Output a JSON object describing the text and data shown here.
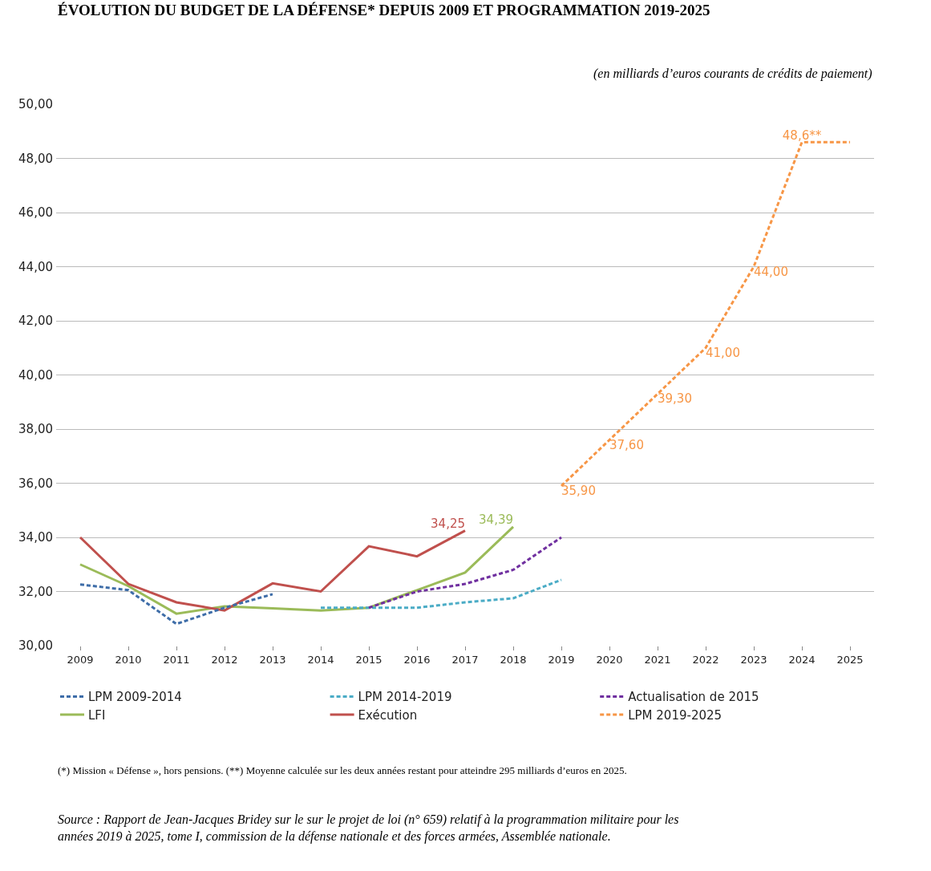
{
  "chart_data": {
    "type": "line",
    "title": "ÉVOLUTION DU BUDGET DE LA DÉFENSE* DEPUIS 2009 ET PROGRAMMATION 2019-2025",
    "subtitle": "(en milliards d’euros courants de crédits de paiement)",
    "categories": [
      "2009",
      "2010",
      "2011",
      "2012",
      "2013",
      "2014",
      "2015",
      "2016",
      "2017",
      "2018",
      "2019",
      "2020",
      "2021",
      "2022",
      "2023",
      "2024",
      "2025"
    ],
    "series": [
      {
        "name": "LPM 2009-2014",
        "color": "#3e6da8",
        "line_style": "dashed",
        "values": [
          32.26,
          32.05,
          30.8,
          31.4,
          31.9,
          null,
          null,
          null,
          null,
          null,
          null,
          null,
          null,
          null,
          null,
          null,
          null
        ]
      },
      {
        "name": "LPM 2014-2019",
        "color": "#4bacc6",
        "line_style": "dashed",
        "values": [
          null,
          null,
          null,
          null,
          null,
          31.4,
          31.4,
          31.4,
          31.6,
          31.75,
          32.43,
          null,
          null,
          null,
          null,
          null,
          null
        ]
      },
      {
        "name": "Actualisation de 2015",
        "color": "#7030a0",
        "line_style": "dashed",
        "values": [
          null,
          null,
          null,
          null,
          null,
          null,
          31.4,
          32.0,
          32.28,
          32.8,
          34.0,
          null,
          null,
          null,
          null,
          null,
          null
        ]
      },
      {
        "name": "LFI",
        "color": "#9bbb59",
        "line_style": "solid",
        "values": [
          33.0,
          32.2,
          31.18,
          31.45,
          31.38,
          31.3,
          31.4,
          32.05,
          32.7,
          34.39,
          null,
          null,
          null,
          null,
          null,
          null,
          null
        ],
        "value_labels": [
          null,
          null,
          null,
          null,
          null,
          null,
          null,
          null,
          null,
          "34,39",
          null,
          null,
          null,
          null,
          null,
          null,
          null
        ]
      },
      {
        "name": "Exécution",
        "color": "#c0504d",
        "line_style": "solid",
        "values": [
          34.0,
          32.28,
          31.6,
          31.3,
          32.3,
          32.0,
          33.67,
          33.3,
          34.25,
          null,
          null,
          null,
          null,
          null,
          null,
          null,
          null
        ],
        "value_labels": [
          null,
          null,
          null,
          null,
          null,
          null,
          null,
          null,
          "34,25",
          null,
          null,
          null,
          null,
          null,
          null,
          null,
          null
        ]
      },
      {
        "name": "LPM 2019-2025",
        "color": "#f79646",
        "line_style": "dashed",
        "values": [
          null,
          null,
          null,
          null,
          null,
          null,
          null,
          null,
          null,
          null,
          35.9,
          37.6,
          39.3,
          41.0,
          44.0,
          48.6,
          48.6
        ],
        "value_labels": [
          null,
          null,
          null,
          null,
          null,
          null,
          null,
          null,
          null,
          null,
          "35,90",
          "37,60",
          "39,30",
          "41,00",
          "44,00",
          "48,6**",
          null
        ]
      }
    ],
    "ylim": [
      30,
      50
    ],
    "yticks": [
      {
        "value": 30,
        "label": "30,00"
      },
      {
        "value": 32,
        "label": "32,00"
      },
      {
        "value": 34,
        "label": "34,00"
      },
      {
        "value": 36,
        "label": "36,00"
      },
      {
        "value": 38,
        "label": "38,00"
      },
      {
        "value": 40,
        "label": "40,00"
      },
      {
        "value": 42,
        "label": "42,00"
      },
      {
        "value": 44,
        "label": "44,00"
      },
      {
        "value": 46,
        "label": "46,00"
      },
      {
        "value": 48,
        "label": "48,00"
      },
      {
        "value": 50,
        "label": "50,00"
      }
    ],
    "grid": "y",
    "legend": "bottom",
    "marker": "none",
    "annotations": [
      "(*) Mission « Défense », hors pensions. (**) Moyenne calculée sur les deux années restant pour atteindre 295 milliards d’euros en 2025.",
      "Source : Rapport de Jean-Jacques Bridey sur le sur le projet de loi (n° 659) relatif à la programmation militaire pour les années 2019 à 2025, tome I, commission de la défense nationale et des forces armées, Assemblée nationale."
    ]
  }
}
